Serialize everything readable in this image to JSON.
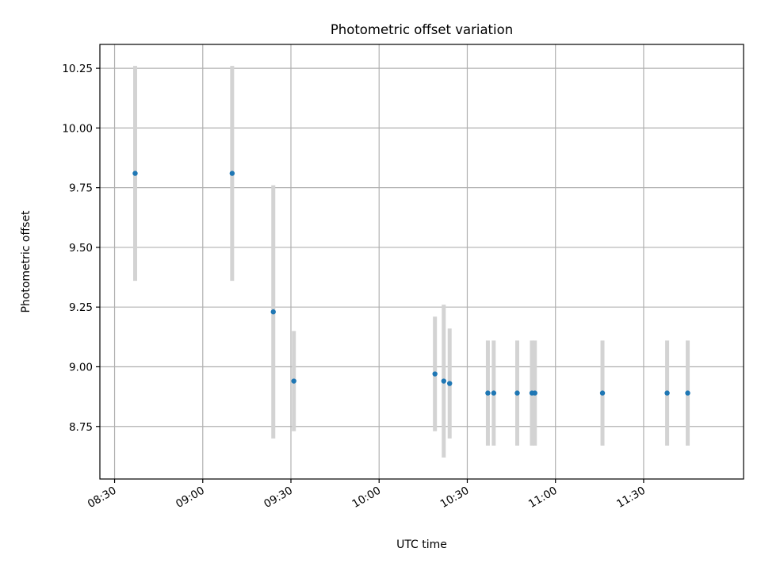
{
  "chart_data": {
    "type": "scatter",
    "title": "Photometric offset variation",
    "xlabel": "UTC time",
    "ylabel": "Photometric offset",
    "x_axis": {
      "kind": "time",
      "range": [
        "08:25",
        "12:04"
      ],
      "ticks": [
        "08:30",
        "09:00",
        "09:30",
        "10:00",
        "10:30",
        "11:00",
        "11:30"
      ],
      "tick_label_rotation": "30 degrees"
    },
    "y_axis": {
      "range": [
        8.53,
        10.35
      ],
      "ticks": [
        "8.75",
        "9.00",
        "9.25",
        "9.50",
        "9.75",
        "10.00",
        "10.25"
      ]
    },
    "grid": true,
    "marker_color": "#1f77b4",
    "errorbar_color": "#d3d3d3",
    "series": [
      {
        "points": [
          {
            "x": "08:37",
            "y": 9.81,
            "err": 0.45
          },
          {
            "x": "09:10",
            "y": 9.81,
            "err": 0.45
          },
          {
            "x": "09:24",
            "y": 9.23,
            "err": 0.53
          },
          {
            "x": "09:31",
            "y": 8.94,
            "err": 0.21
          },
          {
            "x": "10:19",
            "y": 8.97,
            "err": 0.24
          },
          {
            "x": "10:22",
            "y": 8.94,
            "err": 0.32
          },
          {
            "x": "10:24",
            "y": 8.93,
            "err": 0.23
          },
          {
            "x": "10:37",
            "y": 8.89,
            "err": 0.22
          },
          {
            "x": "10:39",
            "y": 8.89,
            "err": 0.22
          },
          {
            "x": "10:47",
            "y": 8.89,
            "err": 0.22
          },
          {
            "x": "10:52",
            "y": 8.89,
            "err": 0.22
          },
          {
            "x": "10:53",
            "y": 8.89,
            "err": 0.22
          },
          {
            "x": "11:16",
            "y": 8.89,
            "err": 0.22
          },
          {
            "x": "11:38",
            "y": 8.89,
            "err": 0.22
          },
          {
            "x": "11:45",
            "y": 8.89,
            "err": 0.22
          }
        ]
      }
    ]
  }
}
